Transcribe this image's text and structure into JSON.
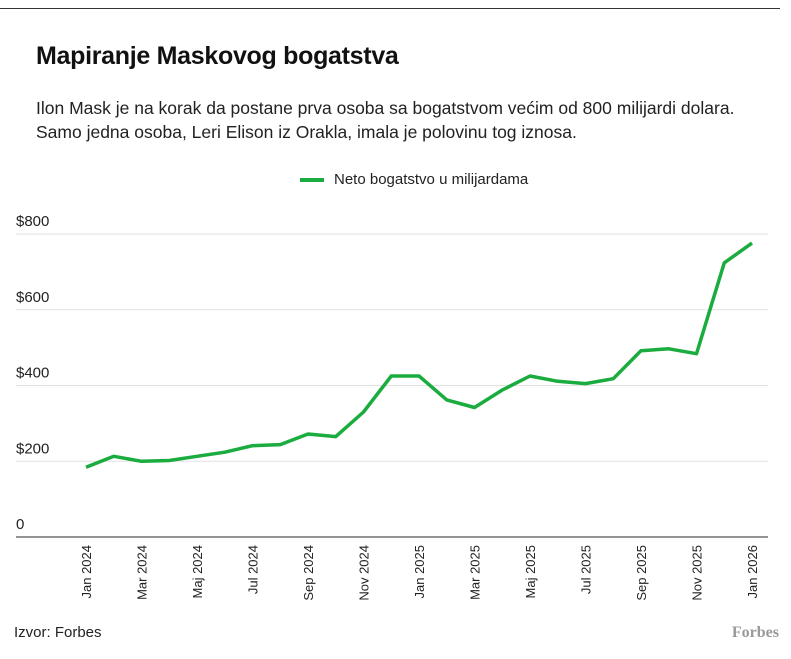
{
  "title": "Mapiranje Maskovog bogatstva",
  "subtitle": "Ilon Mask je na korak da postane prva osoba sa bogatstvom većim od 800 milijardi dolara. Samo jedna osoba, Leri Elison iz Orakla, imala je polovinu tog iznosa.",
  "source": "Izvor: Forbes",
  "logo": "Forbes",
  "chart_data": {
    "type": "line",
    "title": "Mapiranje Maskovog bogatstva",
    "xlabel": "",
    "ylabel": "",
    "ylim": [
      0,
      800
    ],
    "yticks": [
      0,
      200,
      400,
      600,
      800
    ],
    "ytick_labels": [
      "0",
      "$200",
      "$400",
      "$600",
      "$800"
    ],
    "xtick_labels": [
      "Jan 2024",
      "Mar 2024",
      "Maj 2024",
      "Jul 2024",
      "Sep 2024",
      "Nov 2024",
      "Jan 2025",
      "Mar 2025",
      "Maj 2025",
      "Jul 2025",
      "Sep 2025",
      "Nov 2025",
      "Jan 2026"
    ],
    "x": [
      "Jan 2024",
      "Feb 2024",
      "Mar 2024",
      "Apr 2024",
      "Maj 2024",
      "Jun 2024",
      "Jul 2024",
      "Avg 2024",
      "Sep 2024",
      "Okt 2024",
      "Nov 2024",
      "Dec 2024",
      "Jan 2025",
      "Feb 2025",
      "Mar 2025",
      "Apr 2025",
      "Maj 2025",
      "Jun 2025",
      "Jul 2025",
      "Avg 2025",
      "Sep 2025",
      "Okt 2025",
      "Nov 2025",
      "Dec 2025",
      "Jan 2026"
    ],
    "grid": true,
    "legend_position": "top-center",
    "series": [
      {
        "name": "Neto bogatstvo u milijardama",
        "color": "#1aac3e",
        "values": [
          184,
          213,
          200,
          202,
          213,
          224,
          241,
          244,
          272,
          265,
          330,
          425,
          425,
          362,
          342,
          388,
          425,
          411,
          405,
          418,
          492,
          497,
          484,
          724,
          776
        ]
      }
    ]
  }
}
